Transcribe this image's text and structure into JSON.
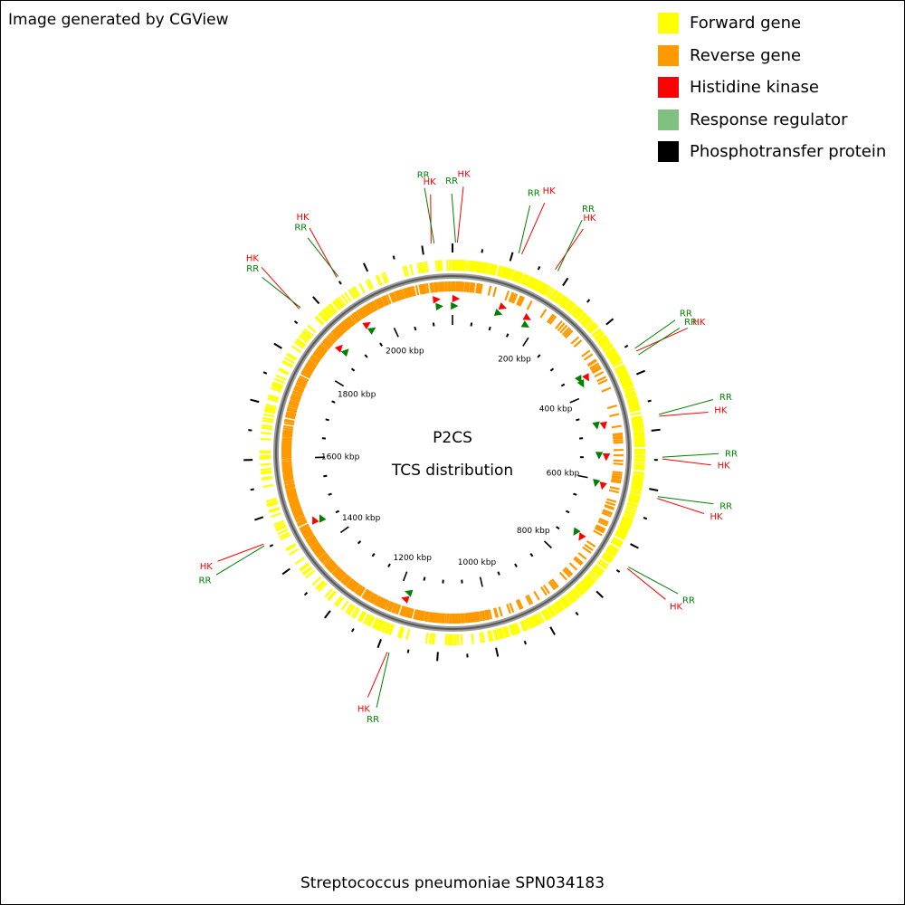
{
  "header": {
    "credit": "Image generated by CGView"
  },
  "footer": {
    "organism": "Streptococcus pneumoniae SPN034183"
  },
  "title": {
    "line1": "P2CS",
    "line2": "TCS distribution"
  },
  "legend": [
    {
      "label": "Forward gene",
      "color": "#ffff00"
    },
    {
      "label": "Reverse gene",
      "color": "#ff9900"
    },
    {
      "label": "Histidine kinase",
      "color": "#ff0000"
    },
    {
      "label": "Response regulator",
      "color": "#80c080"
    },
    {
      "label": "Phosphotransfer protein",
      "color": "#000000"
    }
  ],
  "genome": {
    "length_kbp": 2150,
    "ticks": [
      {
        "kbp": 200,
        "label": "200 kbp"
      },
      {
        "kbp": 400,
        "label": "400 kbp"
      },
      {
        "kbp": 600,
        "label": "600 kbp"
      },
      {
        "kbp": 800,
        "label": "800 kbp"
      },
      {
        "kbp": 1000,
        "label": "1000 kbp"
      },
      {
        "kbp": 1200,
        "label": "1200 kbp"
      },
      {
        "kbp": 1400,
        "label": "1400 kbp"
      },
      {
        "kbp": 1600,
        "label": "1600 kbp"
      },
      {
        "kbp": 1800,
        "label": "1800 kbp"
      },
      {
        "kbp": 2000,
        "label": "2000 kbp"
      }
    ]
  },
  "markers": [
    {
      "label": "HK",
      "type": "HK",
      "kbp": 2115
    },
    {
      "label": "RR",
      "type": "RR",
      "kbp": 2120
    },
    {
      "label": "RR",
      "type": "RR",
      "kbp": 5
    },
    {
      "label": "HK",
      "type": "HK",
      "kbp": 8
    },
    {
      "label": "RR",
      "type": "RR",
      "kbp": 110
    },
    {
      "label": "HK",
      "type": "HK",
      "kbp": 115
    },
    {
      "label": "HK",
      "type": "HK",
      "kbp": 175
    },
    {
      "label": "RR",
      "type": "RR",
      "kbp": 180
    },
    {
      "label": "RR",
      "type": "RR",
      "kbp": 360
    },
    {
      "label": "HK",
      "type": "HK",
      "kbp": 365
    },
    {
      "label": "RR",
      "type": "RR",
      "kbp": 372
    },
    {
      "label": "RR",
      "type": "RR",
      "kbp": 475
    },
    {
      "label": "HK",
      "type": "HK",
      "kbp": 478
    },
    {
      "label": "RR",
      "type": "RR",
      "kbp": 545
    },
    {
      "label": "HK",
      "type": "HK",
      "kbp": 548
    },
    {
      "label": "RR",
      "type": "RR",
      "kbp": 610
    },
    {
      "label": "HK",
      "type": "HK",
      "kbp": 613
    },
    {
      "label": "RR",
      "type": "RR",
      "kbp": 735
    },
    {
      "label": "HK",
      "type": "HK",
      "kbp": 738
    },
    {
      "label": "RR",
      "type": "RR",
      "kbp": 1180
    },
    {
      "label": "HK",
      "type": "HK",
      "kbp": 1183
    },
    {
      "label": "RR",
      "type": "RR",
      "kbp": 1455
    },
    {
      "label": "HK",
      "type": "HK",
      "kbp": 1458
    },
    {
      "label": "HK",
      "type": "HK",
      "kbp": 1870
    },
    {
      "label": "RR",
      "type": "RR",
      "kbp": 1873
    },
    {
      "label": "HK",
      "type": "HK",
      "kbp": 1950
    },
    {
      "label": "RR",
      "type": "RR",
      "kbp": 1953
    }
  ],
  "colors": {
    "forward": "#ffff00",
    "reverse": "#ff9900",
    "hk": "#ff0000",
    "rr_marker": "#008000",
    "backbone": "#808080"
  }
}
